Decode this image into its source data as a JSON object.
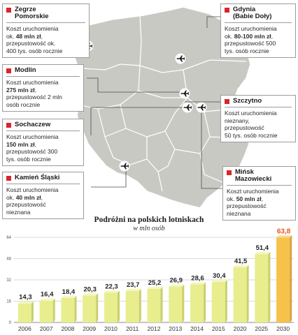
{
  "airports": [
    {
      "id": "zegrze",
      "name": "Zegrze\nPomorskie",
      "lines": [
        "Koszt uruchomienia",
        "ok. ",
        "48 mln zł",
        ", przepustowość ok.",
        "400 tys. osób rocznie"
      ],
      "text": "Koszt uruchomienia\nok. 48 mln zł,\nprzepustowość ok.\n400 tys. osób rocznie",
      "cost_bold": "48 mln zł"
    },
    {
      "id": "gdynia",
      "name": "Gdynia\n(Babie Doły)",
      "text": "Koszt uruchomienia\nok. 80-100 mln zł,\nprzepustowość 500\ntys. osób rocznie",
      "cost_bold": "80-100 mln zł"
    },
    {
      "id": "modlin",
      "name": "Modlin",
      "text": "Koszt uruchomienia\n275 mln zł,\nprzepustowość 2 mln\nosób rocznie",
      "cost_bold": "275 mln zł"
    },
    {
      "id": "szczytno",
      "name": "Szczytno",
      "text": "Koszt uruchomienia\nnieznany,\nprzepustowość\n50 tys. osób rocznie",
      "cost_bold": ""
    },
    {
      "id": "sochaczew",
      "name": "Sochaczew",
      "text": "Koszt uruchomienia\n150 mln zł,\nprzepustowość 300\ntys. osób rocznie",
      "cost_bold": "150 mln zł"
    },
    {
      "id": "kamien",
      "name": "Kamień Śląski",
      "text": "Koszt uruchomienia\nok. 40 mln zł,\nprzepustowość\nnieznana",
      "cost_bold": "40 mln zł"
    },
    {
      "id": "minsk",
      "name": "Mińsk\nMazowiecki",
      "text": "Koszt uruchomienia\nok. 50 mln zł,\nprzepustowość\nnieznana",
      "cost_bold": "50 mln zł"
    }
  ],
  "colors": {
    "map_fill": "#c9c9c4",
    "map_border": "#ffffff",
    "marker": "#d8262e",
    "bar": "#e8ee8e",
    "bar_highlight": "#f5c24c",
    "highlight_label": "#e8552a",
    "grid": "#cccccc"
  },
  "icons": {
    "airport": "airplane-icon"
  },
  "chart_data": {
    "type": "bar",
    "title": "Podróżni na polskich lotniskach",
    "subtitle": "w mln osób",
    "categories": [
      "2006",
      "2007",
      "2008",
      "2009",
      "2010",
      "2011",
      "2012",
      "2013",
      "2014",
      "2015",
      "2020",
      "2025",
      "2030"
    ],
    "values": [
      14.3,
      16.4,
      18.4,
      20.3,
      22.3,
      23.7,
      25.2,
      26.9,
      28.6,
      30.4,
      41.5,
      51.4,
      63.8
    ],
    "value_labels": [
      "14,3",
      "16,4",
      "18,4",
      "20,3",
      "22,3",
      "23,7",
      "25,2",
      "26,9",
      "28,6",
      "30,4",
      "41,5",
      "51,4",
      "63,8"
    ],
    "highlight_index": 12,
    "yticks": [
      "0",
      "16",
      "32",
      "48",
      "64"
    ],
    "ylim": [
      0,
      64
    ],
    "grid": true,
    "xlabel": "",
    "ylabel": ""
  }
}
